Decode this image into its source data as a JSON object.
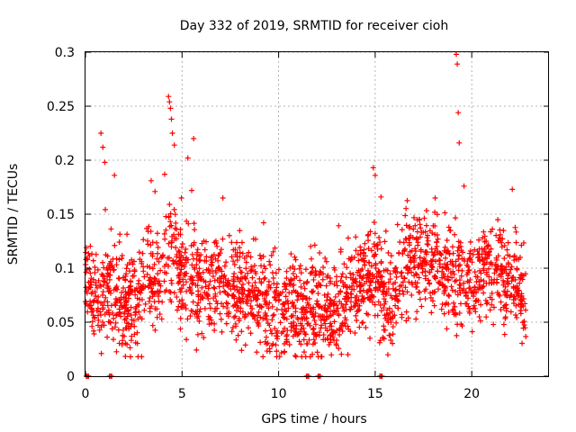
{
  "chart_data": {
    "type": "scatter",
    "title": "Day 332 of 2019, SRMTID for receiver cioh",
    "xlabel": "GPS time / hours",
    "ylabel": "SRMTID / TECUs",
    "xlim": [
      0,
      24
    ],
    "ylim": [
      0,
      0.3
    ],
    "x_ticks": [
      0,
      5,
      10,
      15,
      20
    ],
    "x_tick_labels": [
      "0",
      "5",
      "10",
      "15",
      "20"
    ],
    "y_ticks": [
      0,
      0.05,
      0.1,
      0.15,
      0.2,
      0.25,
      0.3
    ],
    "y_tick_labels": [
      "0",
      "0.05",
      "0.1",
      "0.15",
      "0.2",
      "0.25",
      "0.3"
    ],
    "grid": true,
    "marker": "+",
    "color": "#ff0000",
    "series": [
      {
        "name": "SRMTID",
        "baseline": [
          [
            0.0,
            0.085
          ],
          [
            0.5,
            0.07
          ],
          [
            1.0,
            0.085
          ],
          [
            1.5,
            0.075
          ],
          [
            2.0,
            0.07
          ],
          [
            2.5,
            0.065
          ],
          [
            3.0,
            0.08
          ],
          [
            3.5,
            0.085
          ],
          [
            4.0,
            0.095
          ],
          [
            4.5,
            0.12
          ],
          [
            5.0,
            0.095
          ],
          [
            5.5,
            0.085
          ],
          [
            6.0,
            0.09
          ],
          [
            6.5,
            0.085
          ],
          [
            7.0,
            0.085
          ],
          [
            7.5,
            0.085
          ],
          [
            8.0,
            0.08
          ],
          [
            8.5,
            0.075
          ],
          [
            9.0,
            0.065
          ],
          [
            9.5,
            0.06
          ],
          [
            10.0,
            0.06
          ],
          [
            10.5,
            0.065
          ],
          [
            11.0,
            0.065
          ],
          [
            11.5,
            0.065
          ],
          [
            12.0,
            0.06
          ],
          [
            12.5,
            0.06
          ],
          [
            13.0,
            0.065
          ],
          [
            13.5,
            0.07
          ],
          [
            14.0,
            0.08
          ],
          [
            14.5,
            0.09
          ],
          [
            15.0,
            0.1
          ],
          [
            15.5,
            0.07
          ],
          [
            16.0,
            0.08
          ],
          [
            16.5,
            0.1
          ],
          [
            17.0,
            0.11
          ],
          [
            17.5,
            0.105
          ],
          [
            18.0,
            0.1
          ],
          [
            18.5,
            0.095
          ],
          [
            19.0,
            0.09
          ],
          [
            19.5,
            0.09
          ],
          [
            20.0,
            0.075
          ],
          [
            20.5,
            0.095
          ],
          [
            21.0,
            0.1
          ],
          [
            21.5,
            0.095
          ],
          [
            22.0,
            0.09
          ],
          [
            22.5,
            0.08
          ],
          [
            22.8,
            0.065
          ]
        ],
        "spread": 0.022,
        "points_per_hour": 95,
        "peaks": [
          [
            0.8,
            0.225
          ],
          [
            0.9,
            0.212
          ],
          [
            1.0,
            0.198
          ],
          [
            1.5,
            0.186
          ],
          [
            3.4,
            0.181
          ],
          [
            3.6,
            0.171
          ],
          [
            4.1,
            0.187
          ],
          [
            4.3,
            0.259
          ],
          [
            4.35,
            0.254
          ],
          [
            4.4,
            0.248
          ],
          [
            4.45,
            0.238
          ],
          [
            4.5,
            0.225
          ],
          [
            4.6,
            0.214
          ],
          [
            5.3,
            0.202
          ],
          [
            5.6,
            0.22
          ],
          [
            5.5,
            0.172
          ],
          [
            14.9,
            0.193
          ],
          [
            15.0,
            0.186
          ],
          [
            15.3,
            0.166
          ],
          [
            19.2,
            0.298
          ],
          [
            19.25,
            0.289
          ],
          [
            19.3,
            0.244
          ],
          [
            19.35,
            0.216
          ],
          [
            19.6,
            0.176
          ],
          [
            22.1,
            0.173
          ]
        ],
        "zeros": [
          0.1,
          1.3,
          11.5,
          12.1,
          15.3
        ]
      }
    ]
  }
}
